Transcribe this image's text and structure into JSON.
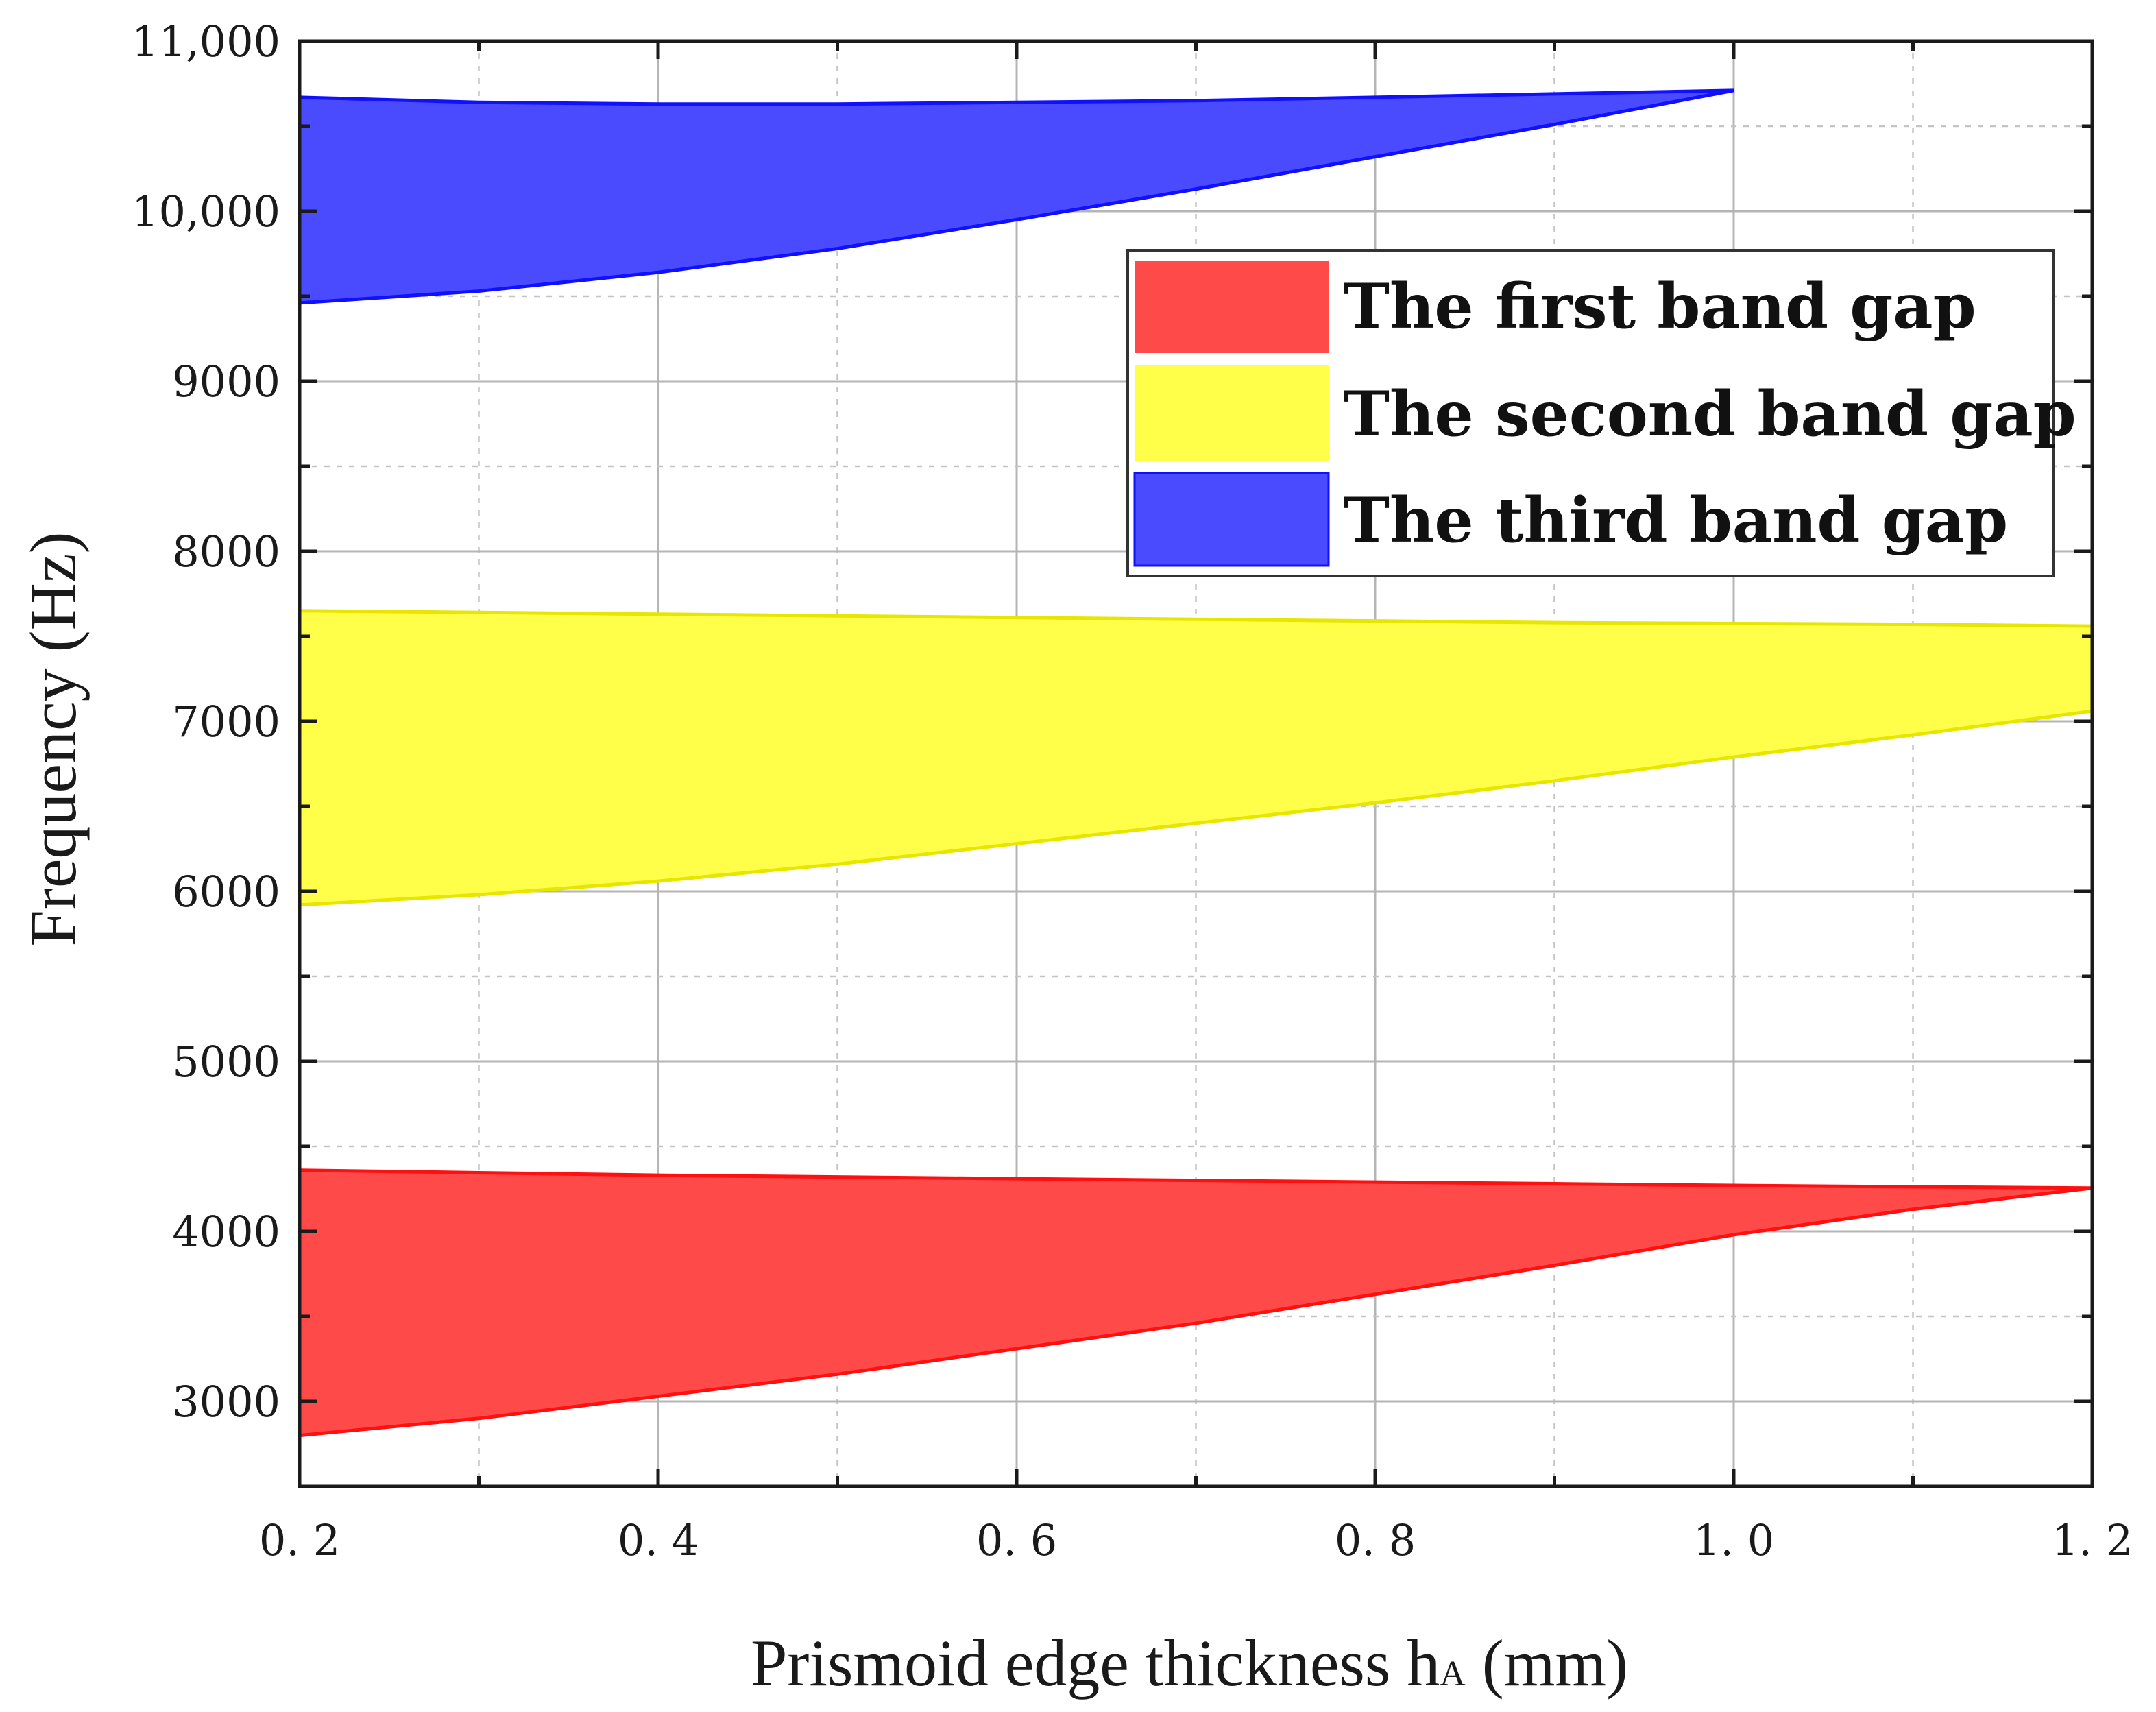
{
  "chart_data": {
    "type": "area",
    "title": "",
    "xlabel": "Prismoid edge thickness h",
    "xlabel_subscript": "A",
    "xlabel_unit": " (mm)",
    "ylabel": "Frequency (Hz)",
    "xlim": [
      0.2,
      1.2
    ],
    "ylim": [
      2500,
      11000
    ],
    "x_ticks": [
      0.2,
      0.4,
      0.6,
      0.8,
      1.0,
      1.2
    ],
    "x_tick_labels": [
      "0. 2",
      "0. 4",
      "0. 6",
      "0. 8",
      "1. 0",
      "1. 2"
    ],
    "y_ticks": [
      3000,
      4000,
      5000,
      6000,
      7000,
      8000,
      9000,
      10000,
      11000
    ],
    "y_tick_labels": [
      "3000",
      "4000",
      "5000",
      "6000",
      "7000",
      "8000",
      "9000",
      "10,000",
      "11,000"
    ],
    "grid": true,
    "legend_position": "top-right",
    "series": [
      {
        "name": "The first band gap",
        "color": "#ff4a4a",
        "edge_color": "#ff1010",
        "x": [
          0.2,
          0.3,
          0.4,
          0.5,
          0.6,
          0.7,
          0.8,
          0.9,
          1.0,
          1.1,
          1.2
        ],
        "upper": [
          4360,
          4345,
          4330,
          4320,
          4310,
          4300,
          4290,
          4280,
          4270,
          4262,
          4255
        ],
        "lower": [
          2800,
          2900,
          3030,
          3160,
          3310,
          3460,
          3630,
          3800,
          3980,
          4130,
          4255
        ]
      },
      {
        "name": "The second band gap",
        "color": "#ffff4a",
        "edge_color": "#e6e600",
        "x": [
          0.2,
          0.3,
          0.4,
          0.5,
          0.6,
          0.7,
          0.8,
          0.9,
          1.0,
          1.1,
          1.2
        ],
        "upper": [
          7650,
          7640,
          7630,
          7620,
          7610,
          7600,
          7590,
          7580,
          7575,
          7570,
          7560
        ],
        "lower": [
          5920,
          5980,
          6060,
          6160,
          6280,
          6400,
          6520,
          6650,
          6790,
          6920,
          7060
        ]
      },
      {
        "name": "The third band gap",
        "color": "#4a4aff",
        "edge_color": "#1010ff",
        "x": [
          0.2,
          0.3,
          0.4,
          0.5,
          0.6,
          0.7,
          0.8,
          0.9,
          1.0
        ],
        "upper": [
          10670,
          10640,
          10630,
          10630,
          10640,
          10650,
          10670,
          10690,
          10710
        ],
        "lower": [
          9460,
          9530,
          9640,
          9780,
          9950,
          10130,
          10320,
          10510,
          10710
        ]
      }
    ]
  }
}
